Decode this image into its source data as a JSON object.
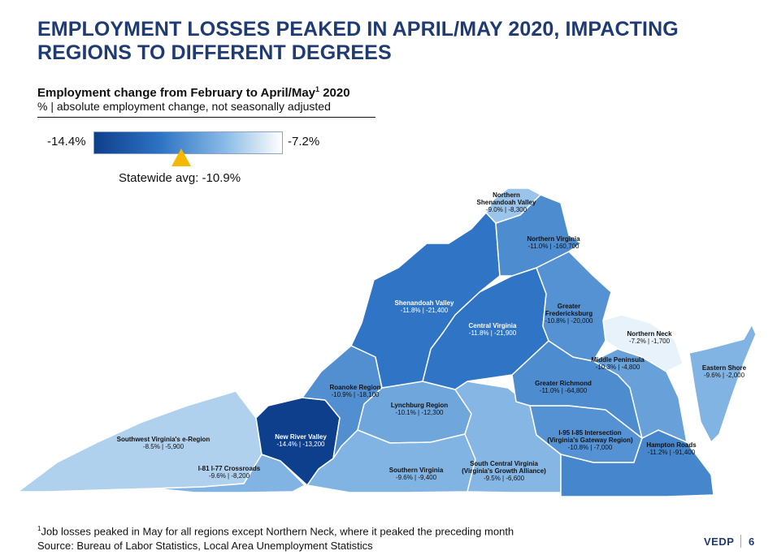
{
  "slide": {
    "title": "EMPLOYMENT LOSSES PEAKED IN APRIL/MAY 2020, IMPACTING REGIONS TO DIFFERENT DEGREES",
    "subtitle": "Employment change from February to April/May",
    "subtitle_sup": "1",
    "subtitle_tail": " 2020",
    "subnote": "% | absolute employment change, not seasonally adjusted",
    "page_number": "6",
    "logo_text": "VEDP"
  },
  "legend": {
    "min_label": "-14.4%",
    "max_label": "-7.2%",
    "min_value": -14.4,
    "max_value": -7.2,
    "statewide_avg_label": "Statewide avg: -10.9%",
    "statewide_avg_value": -10.9,
    "colors": {
      "dark": "#0e3f8c",
      "mid": "#2d73c4",
      "light": "#8bbbe6",
      "lightest": "#ffffff"
    }
  },
  "regions": [
    {
      "id": "northern-shenandoah-valley",
      "name_lines": [
        "Northern",
        "Shenandoah Valley"
      ],
      "value": "-9.0% | -8,300",
      "pct": -9.0,
      "change": -8300
    },
    {
      "id": "northern-virginia",
      "name_lines": [
        "Northern Virginia"
      ],
      "value": "-11.0% | -160,700",
      "pct": -11.0,
      "change": -160700
    },
    {
      "id": "shenandoah-valley",
      "name_lines": [
        "Shenandoah Valley"
      ],
      "value": "-11.8% | -21,400",
      "pct": -11.8,
      "change": -21400
    },
    {
      "id": "central-virginia",
      "name_lines": [
        "Central Virginia"
      ],
      "value": "-11.8% | -21,900",
      "pct": -11.8,
      "change": -21900
    },
    {
      "id": "greater-fredericksburg",
      "name_lines": [
        "Greater",
        "Fredericksburg"
      ],
      "value": "-10.8% | -20,000",
      "pct": -10.8,
      "change": -20000
    },
    {
      "id": "northern-neck",
      "name_lines": [
        "Northern Neck"
      ],
      "value": "-7.2% | -1,700",
      "pct": -7.2,
      "change": -1700
    },
    {
      "id": "middle-peninsula",
      "name_lines": [
        "Middle Peninsula"
      ],
      "value": "-10.3% | -4,800",
      "pct": -10.3,
      "change": -4800
    },
    {
      "id": "eastern-shore",
      "name_lines": [
        "Eastern Shore"
      ],
      "value": "-9.6% | -2,000",
      "pct": -9.6,
      "change": -2000
    },
    {
      "id": "greater-richmond",
      "name_lines": [
        "Greater Richmond"
      ],
      "value": "-11.0% | -64,800",
      "pct": -11.0,
      "change": -64800
    },
    {
      "id": "roanoke-region",
      "name_lines": [
        "Roanoke Region"
      ],
      "value": "-10.9% | -18,100",
      "pct": -10.9,
      "change": -18100
    },
    {
      "id": "lynchburg-region",
      "name_lines": [
        "Lynchburg Region"
      ],
      "value": "-10.1% | -12,300",
      "pct": -10.1,
      "change": -12300
    },
    {
      "id": "new-river-valley",
      "name_lines": [
        "New River Valley"
      ],
      "value": "-14.4% | -13,200",
      "pct": -14.4,
      "change": -13200
    },
    {
      "id": "southwest-virginia",
      "name_lines": [
        "Southwest Virginia's e-Region"
      ],
      "value": "-8.5% | -5,900",
      "pct": -8.5,
      "change": -5900
    },
    {
      "id": "i81-i77-crossroads",
      "name_lines": [
        "I-81 I-77 Crossroads"
      ],
      "value": "-9.6% | -8,200",
      "pct": -9.6,
      "change": -8200
    },
    {
      "id": "southern-virginia",
      "name_lines": [
        "Southern Virginia"
      ],
      "value": "-9.6% | -9,400",
      "pct": -9.6,
      "change": -9400
    },
    {
      "id": "south-central-virginia",
      "name_lines": [
        "South Central Virginia",
        "(Virginia's Growth Alliance)"
      ],
      "value": "-9.5% | -6,600",
      "pct": -9.5,
      "change": -6600
    },
    {
      "id": "i95-i85-intersection",
      "name_lines": [
        "I-95 I-85 Intersection",
        "(Virginia's Gateway Region)"
      ],
      "value": "-10.8% | -7,000",
      "pct": -10.8,
      "change": -7000
    },
    {
      "id": "hampton-roads",
      "name_lines": [
        "Hampton Roads"
      ],
      "value": "-11.2% | -91,400",
      "pct": -11.2,
      "change": -91400
    }
  ],
  "footnote": {
    "sup": "1",
    "line1": "Job losses peaked in May for all regions except Northern Neck, where it peaked the preceding month",
    "line2": "Source: Bureau of Labor Statistics, Local Area Unemployment Statistics"
  }
}
